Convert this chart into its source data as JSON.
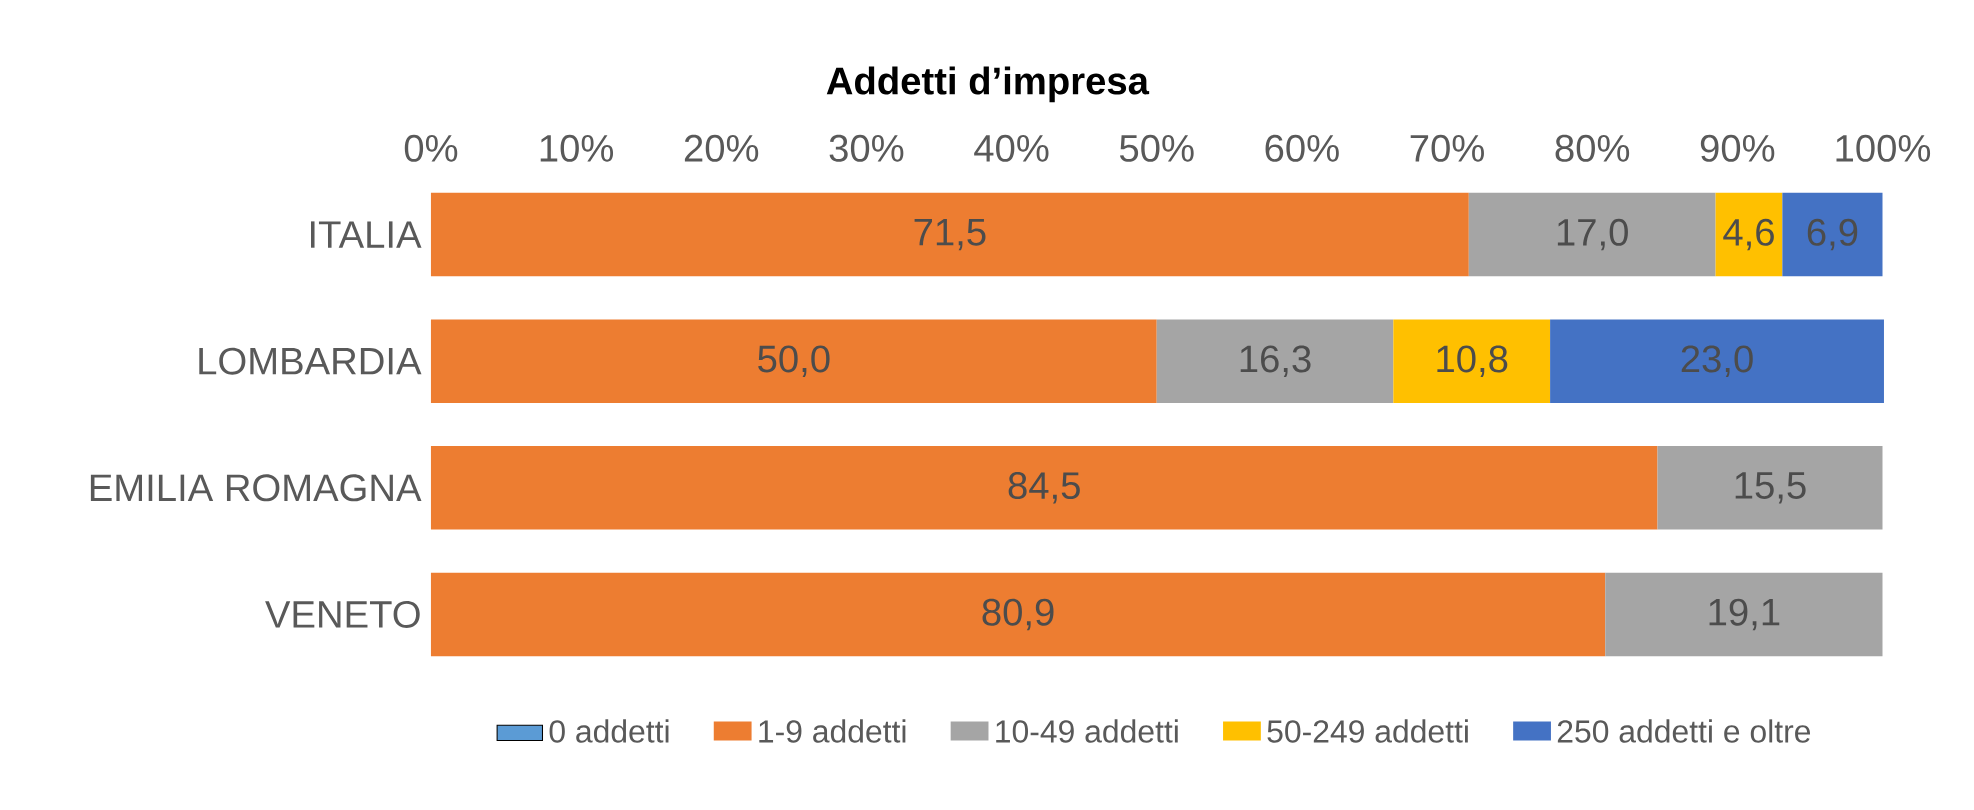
{
  "chart_data": {
    "type": "bar",
    "title": "Addetti d’impresa",
    "orientation": "horizontal",
    "stacked": true,
    "categories": [
      "ITALIA",
      "LOMBARDIA",
      "EMILIA ROMAGNA",
      "VENETO"
    ],
    "series": [
      {
        "name": "0 addetti",
        "color": "#5b9bd5",
        "values": [
          null,
          null,
          null,
          null
        ]
      },
      {
        "name": "1-9 addetti",
        "color": "#ed7d31",
        "values": [
          71.5,
          50.0,
          84.5,
          80.9
        ],
        "value_labels": [
          "71,5",
          "50,0",
          "84,5",
          "80,9"
        ]
      },
      {
        "name": "10-49 addetti",
        "color": "#a5a5a5",
        "values": [
          17.0,
          16.3,
          15.5,
          19.1
        ],
        "value_labels": [
          "17,0",
          "16,3",
          "15,5",
          "19,1"
        ]
      },
      {
        "name": "50-249 addetti",
        "color": "#ffc000",
        "values": [
          4.6,
          10.8,
          null,
          null
        ],
        "value_labels": [
          "4,6",
          "10,8",
          null,
          null
        ]
      },
      {
        "name": "250 addetti e oltre",
        "color": "#4472c4",
        "values": [
          6.9,
          23.0,
          null,
          null
        ],
        "value_labels": [
          "6,9",
          "23,0",
          null,
          null
        ]
      }
    ],
    "xlim": [
      0,
      100
    ],
    "xticks": [
      {
        "value": 0,
        "label": "0%"
      },
      {
        "value": 10,
        "label": "10%"
      },
      {
        "value": 20,
        "label": "20%"
      },
      {
        "value": 30,
        "label": "30%"
      },
      {
        "value": 40,
        "label": "40%"
      },
      {
        "value": 50,
        "label": "50%"
      },
      {
        "value": 60,
        "label": "60%"
      },
      {
        "value": 70,
        "label": "70%"
      },
      {
        "value": 80,
        "label": "80%"
      },
      {
        "value": 90,
        "label": "90%"
      },
      {
        "value": 100,
        "label": "100%"
      }
    ],
    "grid": false,
    "legend": "bottom"
  }
}
